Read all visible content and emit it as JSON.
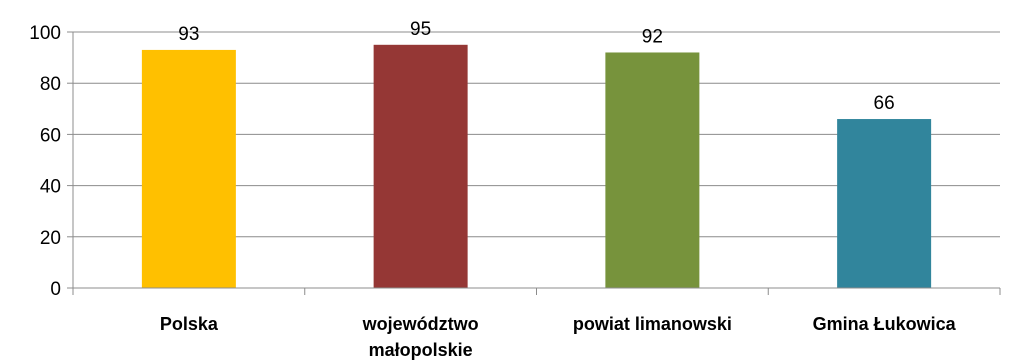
{
  "chart_data": {
    "type": "bar",
    "categories": [
      [
        "Polska"
      ],
      [
        "województwo",
        "małopolskie"
      ],
      [
        "powiat limanowski"
      ],
      [
        "Gmina Łukowica"
      ]
    ],
    "values": [
      93,
      95,
      92,
      66
    ],
    "colors": [
      "#ffc000",
      "#953735",
      "#77933c",
      "#31859c"
    ],
    "ylim": [
      0,
      100
    ],
    "yticks": [
      0,
      20,
      40,
      60,
      80,
      100
    ],
    "grid": true,
    "legend": "none"
  }
}
